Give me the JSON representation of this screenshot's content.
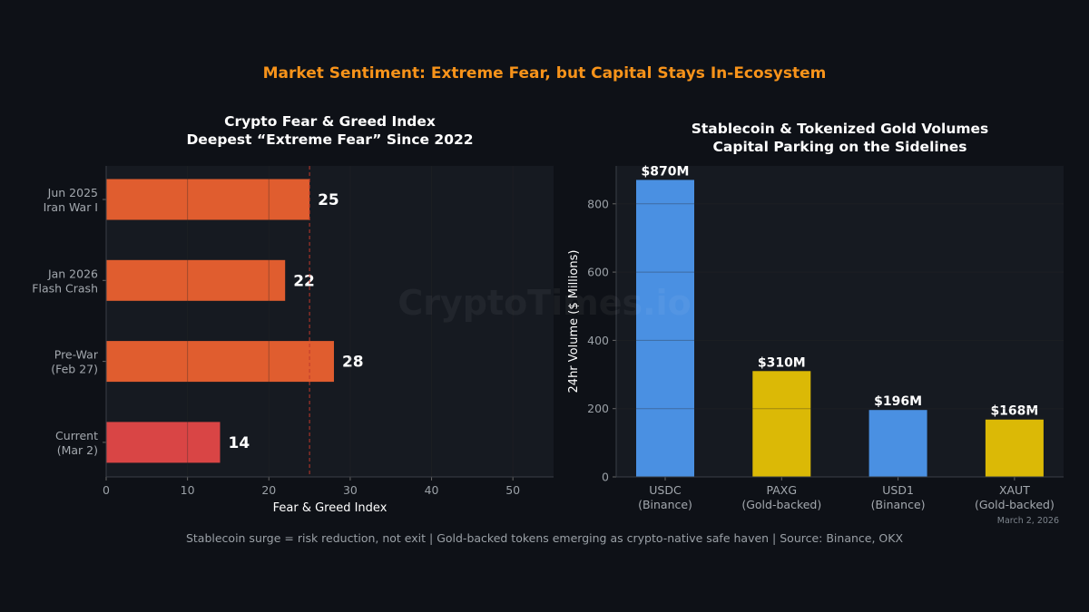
{
  "title": "Market Sentiment: Extreme Fear, but Capital Stays In-Ecosystem",
  "footer": "Stablecoin surge = risk reduction, not exit  |  Gold-backed tokens emerging as crypto-native safe haven  |  Source: Binance, OKX",
  "date": "March 2, 2026",
  "watermark": "CryptoTimes.io",
  "chart_data": [
    {
      "type": "bar",
      "orientation": "horizontal",
      "title": "Crypto Fear & Greed Index",
      "subtitle": "Deepest “Extreme Fear” Since 2022",
      "xlabel": "Fear & Greed Index",
      "xlim": [
        0,
        55
      ],
      "xticks": [
        0,
        10,
        20,
        30,
        40,
        50
      ],
      "reference_line": {
        "x": 25,
        "style": "dashed",
        "color": "#c0392b"
      },
      "categories": [
        [
          "Jun 2025",
          "Iran War I"
        ],
        [
          "Jan 2026",
          "Flash Crash"
        ],
        [
          "Pre-War",
          "(Feb 27)"
        ],
        [
          "Current",
          "(Mar 2)"
        ]
      ],
      "values": [
        25,
        22,
        28,
        14
      ],
      "data_labels": [
        "25",
        "22",
        "28",
        "14"
      ],
      "colors": [
        "#e05d2f",
        "#e05d2f",
        "#e05d2f",
        "#d94545"
      ]
    },
    {
      "type": "bar",
      "title": "Stablecoin & Tokenized Gold Volumes",
      "subtitle": "Capital Parking on the Sidelines",
      "ylabel": "24hr Volume ($ Millions)",
      "ylim": [
        0,
        911
      ],
      "yticks": [
        0,
        200,
        400,
        600,
        800
      ],
      "categories": [
        [
          "USDC",
          "(Binance)"
        ],
        [
          "PAXG",
          "(Gold-backed)"
        ],
        [
          "USD1",
          "(Binance)"
        ],
        [
          "XAUT",
          "(Gold-backed)"
        ]
      ],
      "values": [
        870,
        310,
        196,
        168
      ],
      "data_labels": [
        "$870M",
        "$310M",
        "$196M",
        "$168M"
      ],
      "colors": [
        "#4a90e2",
        "#dbb906",
        "#4a90e2",
        "#dbb906"
      ]
    }
  ]
}
